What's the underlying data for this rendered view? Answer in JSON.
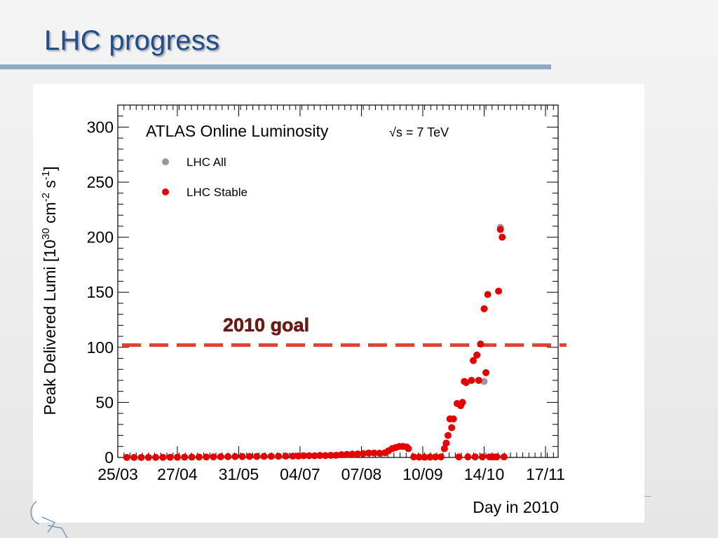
{
  "slide": {
    "title": "LHC progress"
  },
  "chart_data": {
    "type": "scatter",
    "title": "ATLAS Online Luminosity",
    "energy_label": "√s = 7 TeV",
    "ylabel": "Peak Delivered Lumi [10^30 cm^-2 s^-1]",
    "ylabel_parts": {
      "prefix": "Peak Delivered Lumi [10",
      "exp1": "30",
      "mid1": " cm",
      "exp2": "-2",
      "mid2": " s",
      "exp3": "-1",
      "suffix": "]"
    },
    "xlabel": "Day in 2010",
    "xlim": [
      "2010-03-25",
      "2010-11-24"
    ],
    "ylim": [
      0,
      320
    ],
    "x_ticks": [
      {
        "date": "2010-03-25",
        "label": "25/03"
      },
      {
        "date": "2010-04-27",
        "label": "27/04"
      },
      {
        "date": "2010-05-31",
        "label": "31/05"
      },
      {
        "date": "2010-07-04",
        "label": "04/07"
      },
      {
        "date": "2010-08-07",
        "label": "07/08"
      },
      {
        "date": "2010-09-10",
        "label": "10/09"
      },
      {
        "date": "2010-10-14",
        "label": "14/10"
      },
      {
        "date": "2010-11-17",
        "label": "17/11"
      }
    ],
    "y_ticks": [
      0,
      50,
      100,
      150,
      200,
      250,
      300
    ],
    "legend": {
      "placement": "top-left",
      "entries": [
        {
          "name": "LHC All",
          "color": "#999999"
        },
        {
          "name": "LHC Stable",
          "color": "#e60000"
        }
      ]
    },
    "goal_line": {
      "value": 102,
      "label": "2010 goal",
      "color": "#e04030"
    },
    "series": [
      {
        "name": "LHC All",
        "color": "#999999",
        "points": [
          {
            "x": "2010-10-14",
            "y": 69
          },
          {
            "x": "2010-10-23",
            "y": 209
          }
        ]
      },
      {
        "name": "LHC Stable",
        "color": "#e60000",
        "points": [
          {
            "x": "2010-03-30",
            "y": 0.01
          },
          {
            "x": "2010-04-03",
            "y": 0.02
          },
          {
            "x": "2010-04-07",
            "y": 0.03
          },
          {
            "x": "2010-04-11",
            "y": 0.05
          },
          {
            "x": "2010-04-15",
            "y": 0.08
          },
          {
            "x": "2010-04-19",
            "y": 0.1
          },
          {
            "x": "2010-04-23",
            "y": 0.15
          },
          {
            "x": "2010-04-27",
            "y": 0.2
          },
          {
            "x": "2010-05-01",
            "y": 0.25
          },
          {
            "x": "2010-05-05",
            "y": 0.3
          },
          {
            "x": "2010-05-09",
            "y": 0.35
          },
          {
            "x": "2010-05-13",
            "y": 0.4
          },
          {
            "x": "2010-05-17",
            "y": 0.5
          },
          {
            "x": "2010-05-21",
            "y": 0.6
          },
          {
            "x": "2010-05-25",
            "y": 0.7
          },
          {
            "x": "2010-05-29",
            "y": 0.8
          },
          {
            "x": "2010-06-02",
            "y": 0.8
          },
          {
            "x": "2010-06-06",
            "y": 0.9
          },
          {
            "x": "2010-06-10",
            "y": 0.9
          },
          {
            "x": "2010-06-14",
            "y": 1.0
          },
          {
            "x": "2010-06-18",
            "y": 1.0
          },
          {
            "x": "2010-06-22",
            "y": 1.1
          },
          {
            "x": "2010-06-26",
            "y": 1.2
          },
          {
            "x": "2010-06-30",
            "y": 1.2
          },
          {
            "x": "2010-07-03",
            "y": 1.3
          },
          {
            "x": "2010-07-06",
            "y": 1.5
          },
          {
            "x": "2010-07-09",
            "y": 1.6
          },
          {
            "x": "2010-07-12",
            "y": 1.5
          },
          {
            "x": "2010-07-15",
            "y": 1.8
          },
          {
            "x": "2010-07-18",
            "y": 1.7
          },
          {
            "x": "2010-07-21",
            "y": 1.9
          },
          {
            "x": "2010-07-24",
            "y": 2.0
          },
          {
            "x": "2010-07-27",
            "y": 2.5
          },
          {
            "x": "2010-07-30",
            "y": 2.8
          },
          {
            "x": "2010-08-02",
            "y": 3.0
          },
          {
            "x": "2010-08-05",
            "y": 3.2
          },
          {
            "x": "2010-08-08",
            "y": 3.5
          },
          {
            "x": "2010-08-11",
            "y": 4.0
          },
          {
            "x": "2010-08-14",
            "y": 4.0
          },
          {
            "x": "2010-08-17",
            "y": 3.8
          },
          {
            "x": "2010-08-20",
            "y": 4.2
          },
          {
            "x": "2010-08-22",
            "y": 6.0
          },
          {
            "x": "2010-08-24",
            "y": 8.0
          },
          {
            "x": "2010-08-26",
            "y": 9.0
          },
          {
            "x": "2010-08-28",
            "y": 10.0
          },
          {
            "x": "2010-08-30",
            "y": 10.0
          },
          {
            "x": "2010-09-01",
            "y": 9.5
          },
          {
            "x": "2010-09-02",
            "y": 8.0
          },
          {
            "x": "2010-09-05",
            "y": 0.5
          },
          {
            "x": "2010-09-08",
            "y": 0.3
          },
          {
            "x": "2010-09-11",
            "y": 0.2
          },
          {
            "x": "2010-09-14",
            "y": 0.3
          },
          {
            "x": "2010-09-17",
            "y": 0.4
          },
          {
            "x": "2010-09-20",
            "y": 0.5
          },
          {
            "x": "2010-09-22",
            "y": 8
          },
          {
            "x": "2010-09-23",
            "y": 13
          },
          {
            "x": "2010-09-24",
            "y": 20
          },
          {
            "x": "2010-09-25",
            "y": 35
          },
          {
            "x": "2010-09-26",
            "y": 27
          },
          {
            "x": "2010-09-27",
            "y": 35
          },
          {
            "x": "2010-09-29",
            "y": 49
          },
          {
            "x": "2010-09-30",
            "y": 0.5
          },
          {
            "x": "2010-10-01",
            "y": 47
          },
          {
            "x": "2010-10-02",
            "y": 50
          },
          {
            "x": "2010-10-03",
            "y": 69
          },
          {
            "x": "2010-10-04",
            "y": 68
          },
          {
            "x": "2010-10-05",
            "y": 0.5
          },
          {
            "x": "2010-10-07",
            "y": 70
          },
          {
            "x": "2010-10-08",
            "y": 88
          },
          {
            "x": "2010-10-09",
            "y": 0.5
          },
          {
            "x": "2010-10-10",
            "y": 93
          },
          {
            "x": "2010-10-11",
            "y": 70
          },
          {
            "x": "2010-10-12",
            "y": 103
          },
          {
            "x": "2010-10-13",
            "y": 0.5
          },
          {
            "x": "2010-10-14",
            "y": 135
          },
          {
            "x": "2010-10-15",
            "y": 77
          },
          {
            "x": "2010-10-16",
            "y": 148
          },
          {
            "x": "2010-10-17",
            "y": 0.5
          },
          {
            "x": "2010-10-19",
            "y": 0.5
          },
          {
            "x": "2010-10-21",
            "y": 0.5
          },
          {
            "x": "2010-10-22",
            "y": 151
          },
          {
            "x": "2010-10-23",
            "y": 207
          },
          {
            "x": "2010-10-24",
            "y": 200
          },
          {
            "x": "2010-10-25",
            "y": 0.5
          }
        ]
      }
    ]
  }
}
